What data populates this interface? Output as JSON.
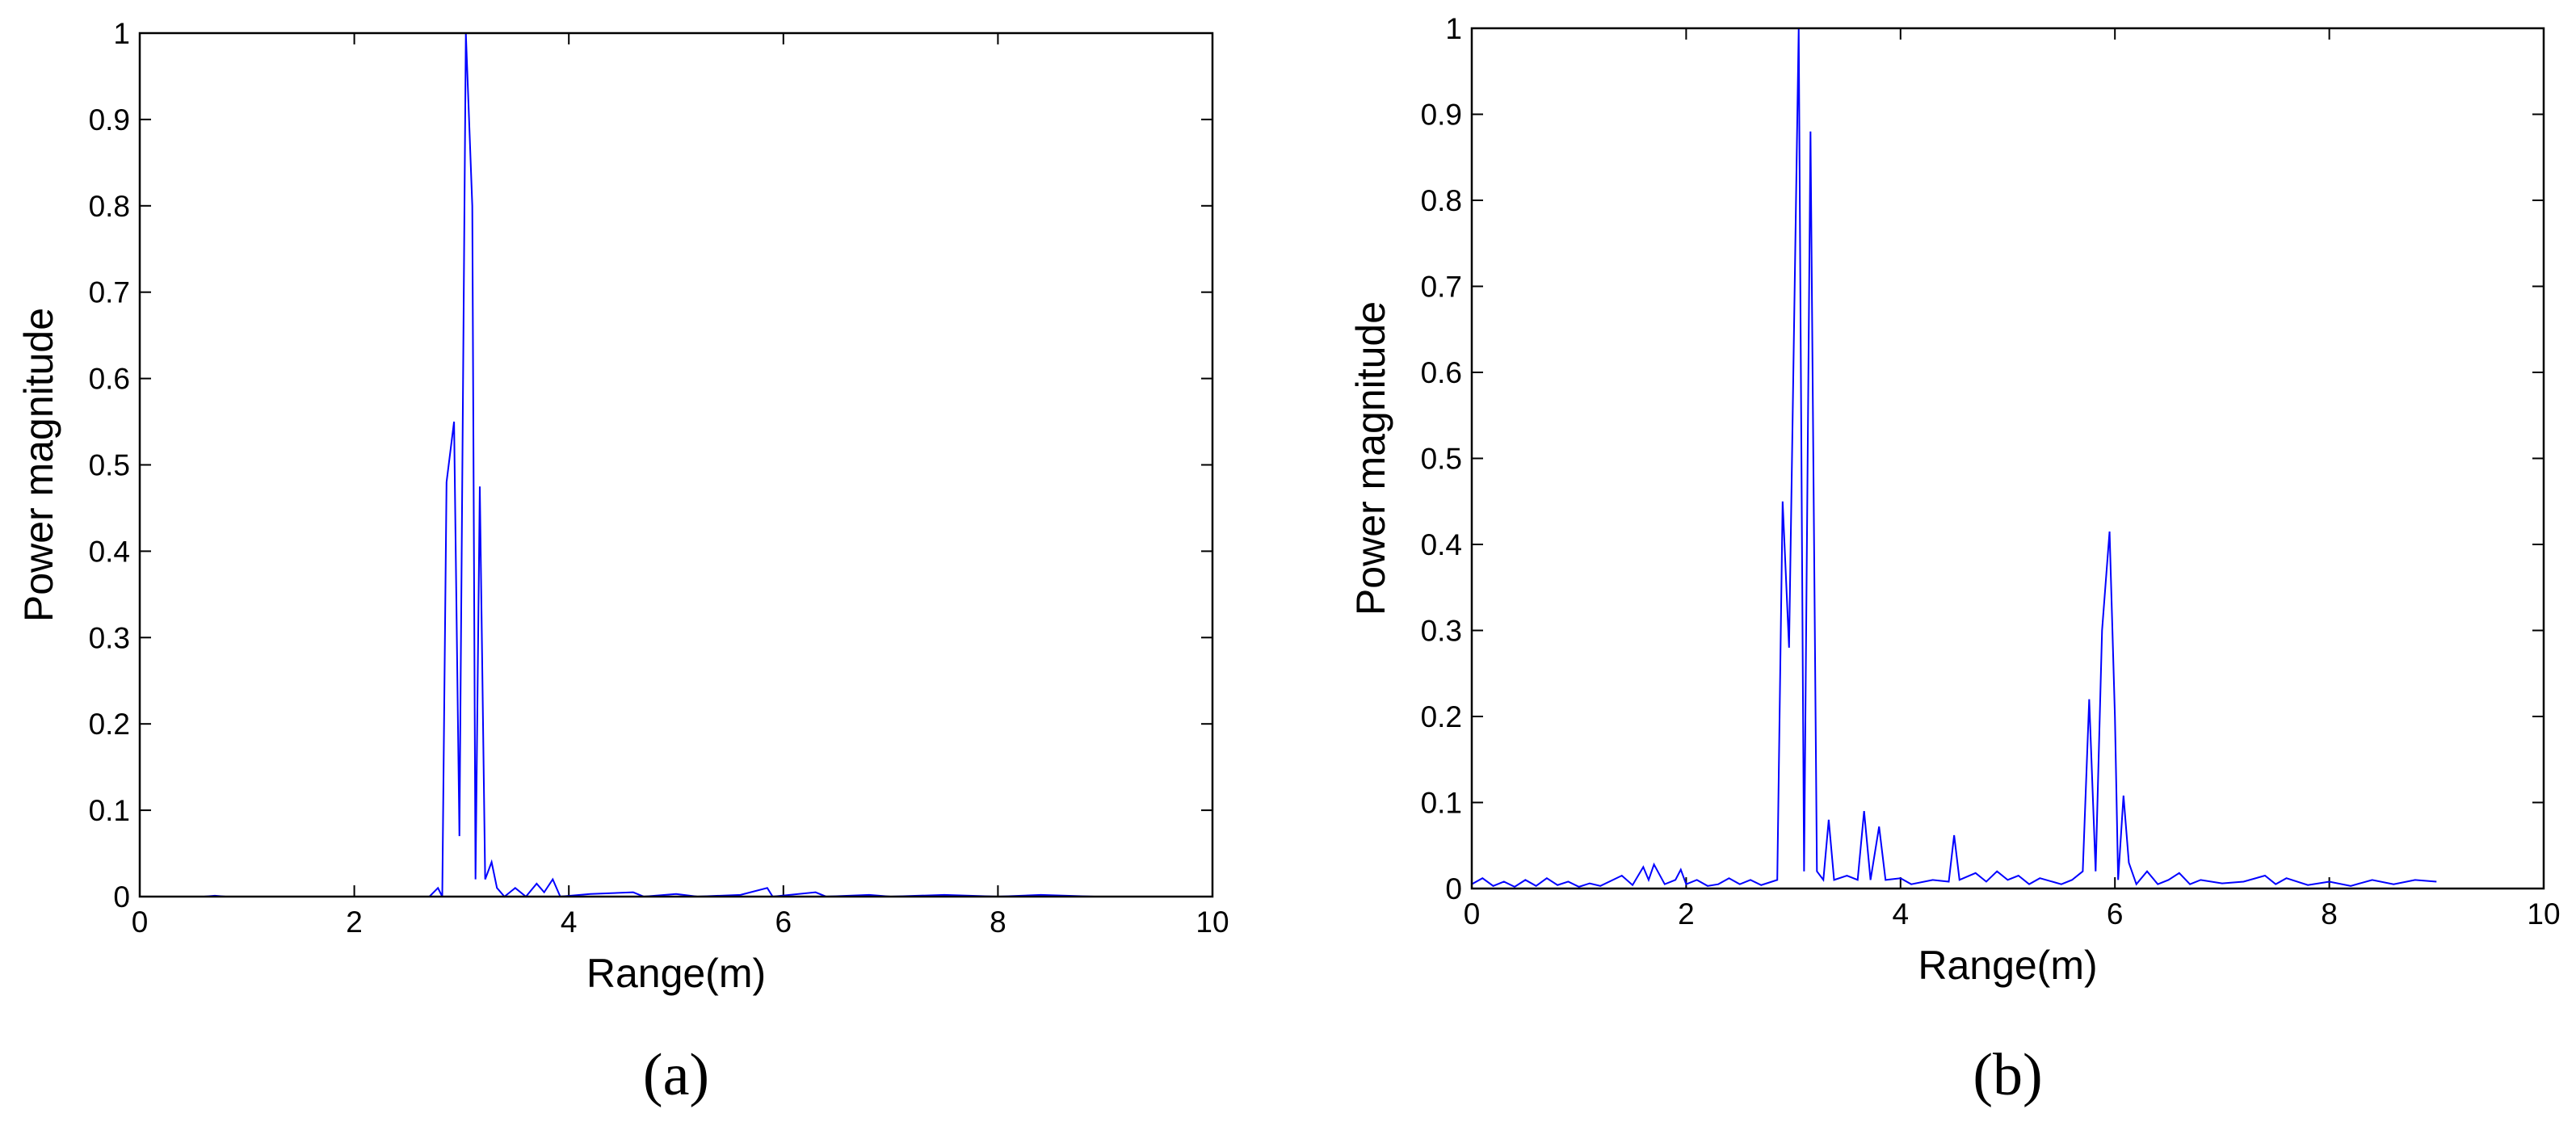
{
  "chart_data": [
    {
      "type": "line",
      "caption": "(a)",
      "xlabel": "Range(m)",
      "ylabel": "Power magnitude",
      "color": "#0000ff",
      "x": [
        0.6,
        0.7,
        0.8,
        1.5,
        2.7,
        2.78,
        2.82,
        2.86,
        2.93,
        2.98,
        3.04,
        3.1,
        3.13,
        3.17,
        3.22,
        3.28,
        3.33,
        3.4,
        3.5,
        3.6,
        3.7,
        3.77,
        3.85,
        3.92,
        4.2,
        4.6,
        4.7,
        5.0,
        5.2,
        5.6,
        5.85,
        5.9,
        6.3,
        6.4,
        6.8,
        7.0,
        7.5,
        8.0,
        8.4,
        8.9
      ],
      "values": [
        0,
        0.001,
        0,
        0,
        0,
        0.01,
        0,
        0.48,
        0.55,
        0.07,
        1.0,
        0.8,
        0.02,
        0.475,
        0.02,
        0.04,
        0.01,
        0,
        0.01,
        0,
        0.015,
        0.005,
        0.02,
        0,
        0.003,
        0.005,
        0,
        0.003,
        0,
        0.002,
        0.01,
        0,
        0.005,
        0,
        0.002,
        0,
        0.002,
        0,
        0.002,
        0
      ],
      "xlim": [
        0,
        10
      ],
      "xticks": [
        0,
        2,
        4,
        6,
        8,
        10
      ],
      "ylim": [
        0,
        1
      ],
      "yticks": [
        0,
        0.1,
        0.2,
        0.3,
        0.4,
        0.5,
        0.6,
        0.7,
        0.8,
        0.9,
        1
      ]
    },
    {
      "type": "line",
      "caption": "(b)",
      "xlabel": "Range(m)",
      "ylabel": "Power magnitude",
      "color": "#0000ff",
      "x": [
        0,
        0.1,
        0.2,
        0.3,
        0.4,
        0.5,
        0.6,
        0.7,
        0.8,
        0.9,
        1.0,
        1.1,
        1.2,
        1.4,
        1.5,
        1.6,
        1.65,
        1.7,
        1.8,
        1.9,
        1.95,
        2.0,
        2.1,
        2.2,
        2.3,
        2.4,
        2.5,
        2.6,
        2.7,
        2.85,
        2.9,
        2.96,
        3.05,
        3.1,
        3.16,
        3.22,
        3.28,
        3.33,
        3.38,
        3.5,
        3.6,
        3.66,
        3.72,
        3.8,
        3.86,
        4.0,
        4.1,
        4.3,
        4.45,
        4.5,
        4.55,
        4.7,
        4.8,
        4.9,
        5.0,
        5.1,
        5.2,
        5.3,
        5.5,
        5.6,
        5.7,
        5.76,
        5.82,
        5.88,
        5.95,
        6.0,
        6.03,
        6.08,
        6.13,
        6.2,
        6.3,
        6.4,
        6.5,
        6.6,
        6.7,
        6.8,
        7.0,
        7.2,
        7.4,
        7.5,
        7.6,
        7.8,
        8.0,
        8.2,
        8.4,
        8.6,
        8.8,
        9.0
      ],
      "values": [
        0.005,
        0.012,
        0.003,
        0.008,
        0.002,
        0.01,
        0.003,
        0.012,
        0.004,
        0.008,
        0.002,
        0.006,
        0.003,
        0.015,
        0.004,
        0.025,
        0.01,
        0.028,
        0.005,
        0.01,
        0.022,
        0.005,
        0.01,
        0.003,
        0.005,
        0.012,
        0.005,
        0.01,
        0.004,
        0.01,
        0.45,
        0.28,
        1.0,
        0.02,
        0.88,
        0.02,
        0.01,
        0.08,
        0.01,
        0.015,
        0.01,
        0.09,
        0.01,
        0.072,
        0.01,
        0.012,
        0.005,
        0.01,
        0.008,
        0.062,
        0.01,
        0.018,
        0.008,
        0.02,
        0.01,
        0.015,
        0.005,
        0.012,
        0.005,
        0.01,
        0.02,
        0.22,
        0.02,
        0.3,
        0.415,
        0.2,
        0.01,
        0.108,
        0.03,
        0.005,
        0.02,
        0.005,
        0.01,
        0.018,
        0.005,
        0.01,
        0.006,
        0.008,
        0.015,
        0.005,
        0.012,
        0.004,
        0.008,
        0.003,
        0.01,
        0.005,
        0.01,
        0.008
      ],
      "xlim": [
        0,
        10
      ],
      "xticks": [
        0,
        2,
        4,
        6,
        8,
        10
      ],
      "ylim": [
        0,
        1
      ],
      "yticks": [
        0,
        0.1,
        0.2,
        0.3,
        0.4,
        0.5,
        0.6,
        0.7,
        0.8,
        0.9,
        1
      ]
    }
  ]
}
